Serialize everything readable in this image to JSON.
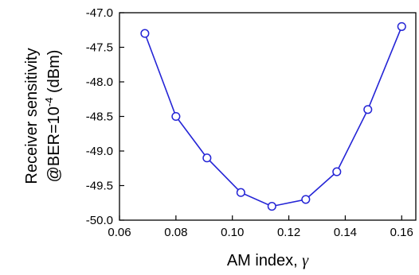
{
  "chart_data": {
    "type": "line",
    "xlabel": "AM index, ",
    "xlabel_symbol": "γ",
    "ylabel_line1": "Receiver sensitivity",
    "ylabel_line2_pre": "@BER=10",
    "ylabel_line2_exp": "-4",
    "ylabel_line2_post": " (dBm)",
    "xlim": [
      0.06,
      0.165
    ],
    "ylim": [
      -50.0,
      -47.0
    ],
    "xticks": [
      "0.06",
      "0.08",
      "0.10",
      "0.12",
      "0.14",
      "0.16"
    ],
    "yticks": [
      "-47.0",
      "-47.5",
      "-48.0",
      "-48.5",
      "-49.0",
      "-49.5",
      "-50.0"
    ],
    "grid": false,
    "series": [
      {
        "color": "#2424d6",
        "marker": "open-circle",
        "x": [
          0.069,
          0.08,
          0.091,
          0.103,
          0.114,
          0.126,
          0.137,
          0.148,
          0.16
        ],
        "y": [
          -47.3,
          -48.5,
          -49.1,
          -49.6,
          -49.8,
          -49.7,
          -49.3,
          -48.4,
          -47.2
        ]
      }
    ]
  }
}
